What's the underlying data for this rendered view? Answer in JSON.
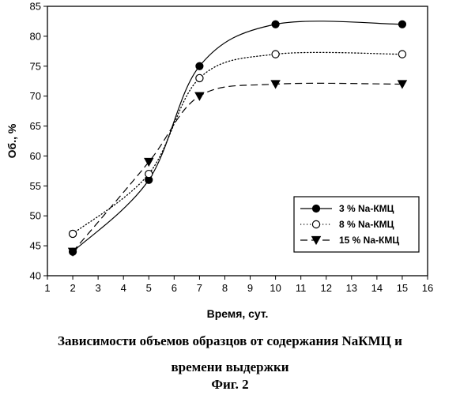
{
  "chart_data": {
    "type": "line",
    "xlabel": "Время, сут.",
    "ylabel": "Об., %",
    "xlim": [
      1,
      16
    ],
    "ylim": [
      40,
      85
    ],
    "xticks": [
      1,
      2,
      3,
      4,
      5,
      6,
      7,
      8,
      9,
      10,
      11,
      12,
      13,
      14,
      15,
      16
    ],
    "yticks": [
      40,
      45,
      50,
      55,
      60,
      65,
      70,
      75,
      80,
      85
    ],
    "grid": false,
    "legend_position": "bottom-right",
    "series": [
      {
        "name": "3 % Na-КМЦ",
        "x": [
          2,
          5,
          7,
          10,
          15
        ],
        "y": [
          44,
          56,
          75,
          82,
          82
        ],
        "line": "solid",
        "marker": "filled-circle"
      },
      {
        "name": "8 % Na-КМЦ",
        "x": [
          2,
          5,
          7,
          10,
          15
        ],
        "y": [
          47,
          57,
          73,
          77,
          77
        ],
        "line": "dotted",
        "marker": "open-circle"
      },
      {
        "name": "15 % Na-КМЦ",
        "x": [
          2,
          5,
          7,
          10,
          15
        ],
        "y": [
          44,
          59,
          70,
          72,
          72
        ],
        "line": "dashed",
        "marker": "filled-triangle-down"
      }
    ]
  },
  "caption": {
    "line1": "Зависимости объемов образцов от содержания NaКМЦ и",
    "line2": "времени выдержки",
    "figure": "Фиг. 2"
  }
}
